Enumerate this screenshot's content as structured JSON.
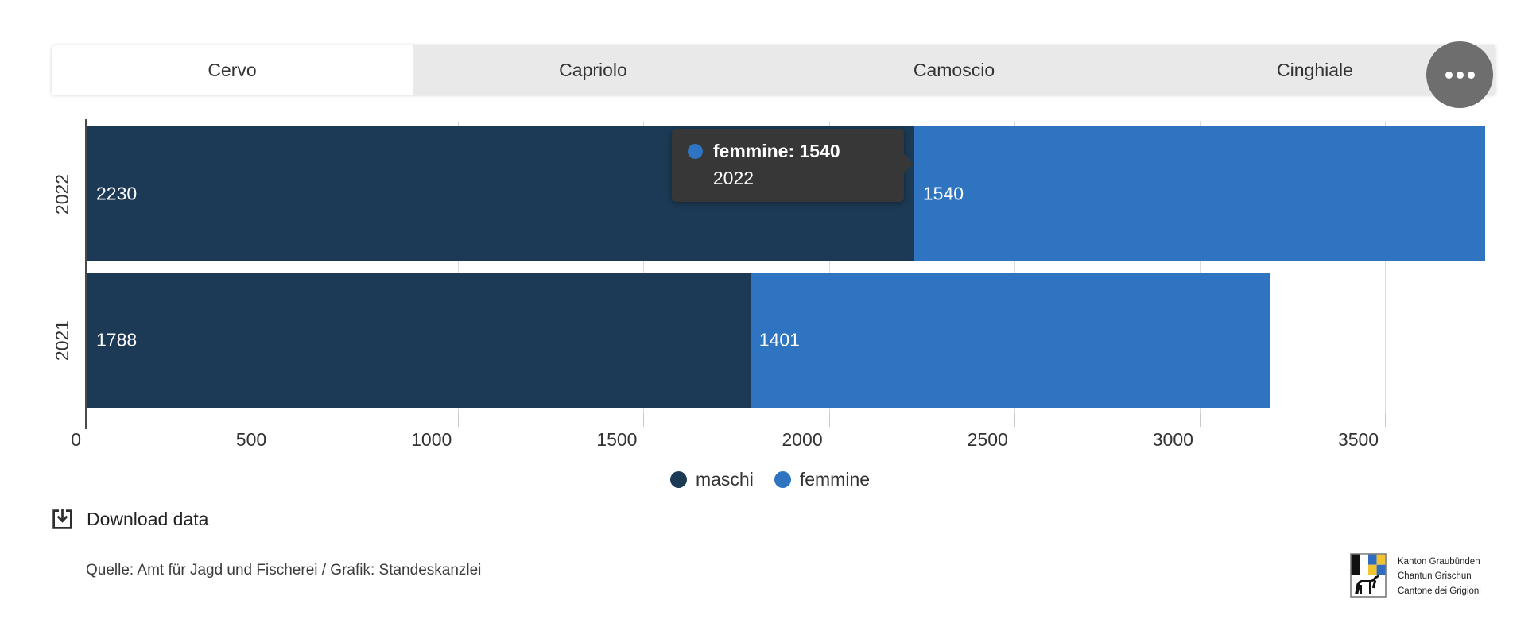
{
  "tabs": [
    {
      "label": "Cervo",
      "active": true
    },
    {
      "label": "Capriolo",
      "active": false
    },
    {
      "label": "Camoscio",
      "active": false
    },
    {
      "label": "Cinghiale",
      "active": false
    }
  ],
  "chart_data": {
    "type": "bar",
    "orientation": "horizontal",
    "stacked": true,
    "categories": [
      "2022",
      "2021"
    ],
    "series": [
      {
        "name": "maschi",
        "color": "#1c3a55",
        "values": [
          2230,
          1788
        ]
      },
      {
        "name": "femmine",
        "color": "#2e74c0",
        "values": [
          1540,
          1401
        ]
      }
    ],
    "x_ticks": [
      0,
      500,
      1000,
      1500,
      2000,
      2500,
      3000,
      3500
    ],
    "xlim": [
      0,
      3770
    ],
    "grid": true,
    "legend_position": "bottom-center",
    "value_labels": "inside-start",
    "title": "",
    "xlabel": "",
    "ylabel": ""
  },
  "tooltip": {
    "series": "femmine",
    "category": "2022",
    "value": 1540,
    "line1": "femmine: 1540",
    "line2": "2022",
    "marker_color": "#2e74c0"
  },
  "download": {
    "label": "Download data"
  },
  "footer": {
    "source": "Quelle: Amt für Jagd und Fischerei / Grafik: Standeskanzlei"
  },
  "logo": {
    "lines": [
      "Kanton Graubünden",
      "Chantun Grischun",
      "Cantone dei Grigioni"
    ]
  },
  "colors": {
    "tab_inactive_bg": "#e9e9e9",
    "tab_active_bg": "#ffffff",
    "tooltip_bg": "#373737",
    "more_button_bg": "#6e6e6e",
    "gridline": "#dcdcdc",
    "axis_line": "#4a4a4a",
    "shield_blue": "#2f6bbf",
    "shield_yellow": "#f0c330"
  }
}
